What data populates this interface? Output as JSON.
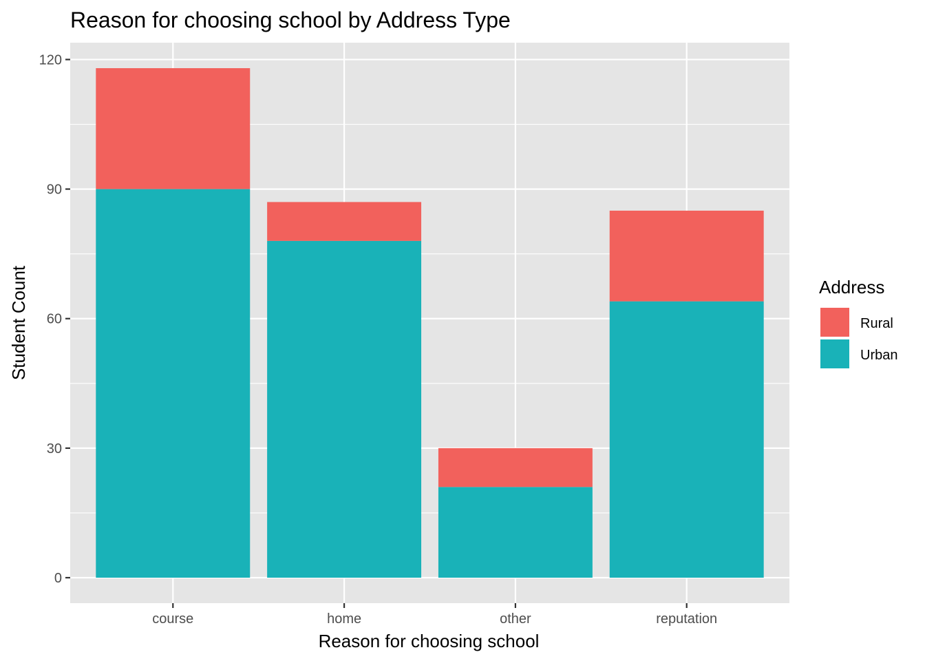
{
  "chart_data": {
    "type": "bar",
    "stacked": true,
    "title": "Reason for choosing school by Address Type",
    "xlabel": "Reason for choosing school",
    "ylabel": "Student Count",
    "categories": [
      "course",
      "home",
      "other",
      "reputation"
    ],
    "series": [
      {
        "name": "Urban",
        "color": "#19B2B8",
        "values": [
          90,
          78,
          21,
          64
        ]
      },
      {
        "name": "Rural",
        "color": "#F2615C",
        "values": [
          28,
          9,
          9,
          21
        ]
      }
    ],
    "ylim": [
      -5.9,
      123.9
    ],
    "yticks": [
      0,
      30,
      60,
      90,
      120
    ],
    "grid": true,
    "legend": {
      "title": "Address",
      "position": "right",
      "items": [
        {
          "label": "Rural",
          "color": "#F2615C"
        },
        {
          "label": "Urban",
          "color": "#19B2B8"
        }
      ]
    },
    "panel_background": "#E5E5E5",
    "grid_color": "#FFFFFF"
  }
}
